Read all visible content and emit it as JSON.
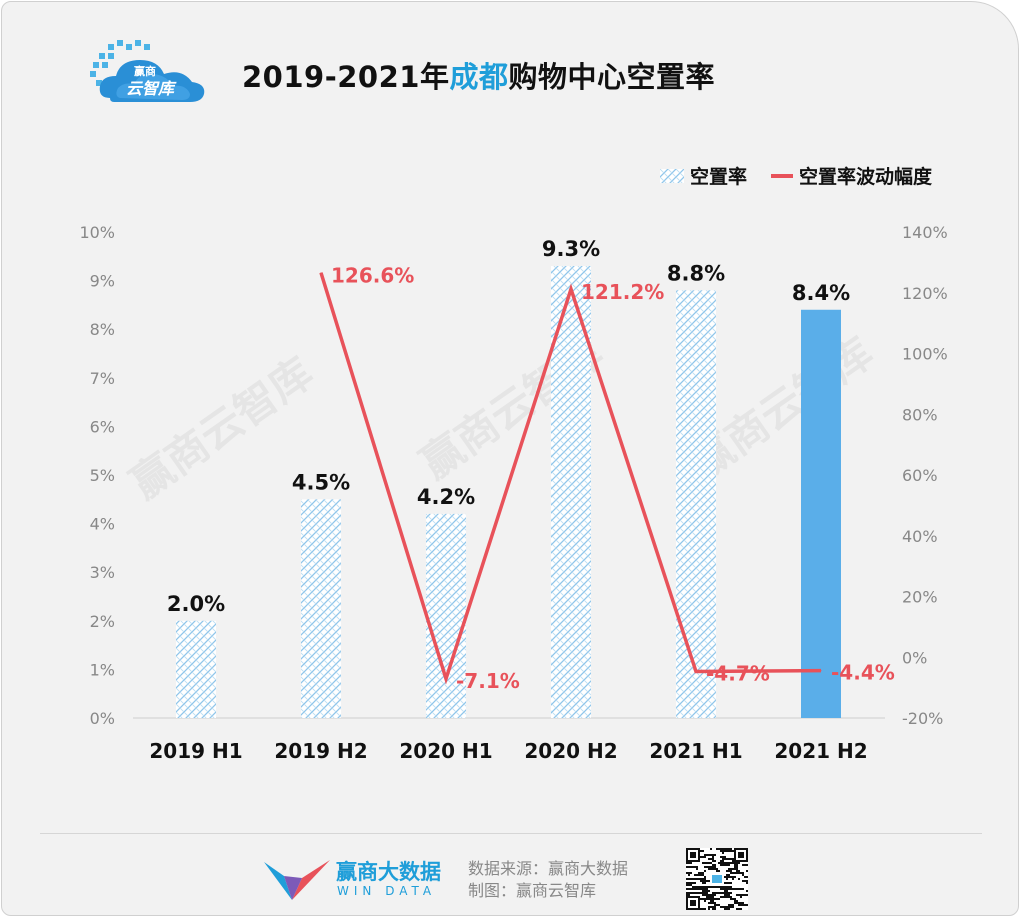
{
  "header": {
    "logo_text_top": "赢商",
    "logo_text_bottom": "云智库",
    "title_before": "2019-2021年",
    "title_highlight": "成都",
    "title_after": "购物中心空置率"
  },
  "legend": {
    "bar_label": "空置率",
    "line_label": "空置率波动幅度"
  },
  "watermark": "赢商云智库",
  "chart_data": {
    "type": "bar+line",
    "categories": [
      "2019 H1",
      "2019 H2",
      "2020 H1",
      "2020 H2",
      "2021 H1",
      "2021 H2"
    ],
    "series": [
      {
        "name": "空置率",
        "axis": "left",
        "values": [
          2.0,
          4.5,
          4.2,
          9.3,
          8.8,
          8.4
        ],
        "labels": [
          "2.0%",
          "4.5%",
          "4.2%",
          "9.3%",
          "8.8%",
          "8.4%"
        ]
      },
      {
        "name": "空置率波动幅度",
        "axis": "right",
        "values": [
          null,
          126.6,
          -7.1,
          121.2,
          -4.7,
          -4.4
        ],
        "labels": [
          "",
          "126.6%",
          "-7.1%",
          "121.2%",
          "-4.7%",
          "-4.4%"
        ]
      }
    ],
    "y_left": {
      "min": 0,
      "max": 10,
      "ticks": [
        "0%",
        "1%",
        "2%",
        "3%",
        "4%",
        "5%",
        "6%",
        "7%",
        "8%",
        "9%",
        "10%"
      ]
    },
    "y_right": {
      "min": -20,
      "max": 140,
      "ticks": [
        "-20%",
        "0%",
        "20%",
        "40%",
        "60%",
        "80%",
        "100%",
        "120%",
        "140%"
      ]
    },
    "highlight_index": 5,
    "colors": {
      "bar_pattern": "#8fc6ea",
      "bar_highlight": "#5aaee9",
      "line": "#e8525a",
      "bar_label": "#111111"
    }
  },
  "footer": {
    "brand_cn": "赢商大数据",
    "brand_en": "WIN DATA",
    "source": "数据来源：赢商大数据",
    "credit": "制图：赢商云智库"
  }
}
